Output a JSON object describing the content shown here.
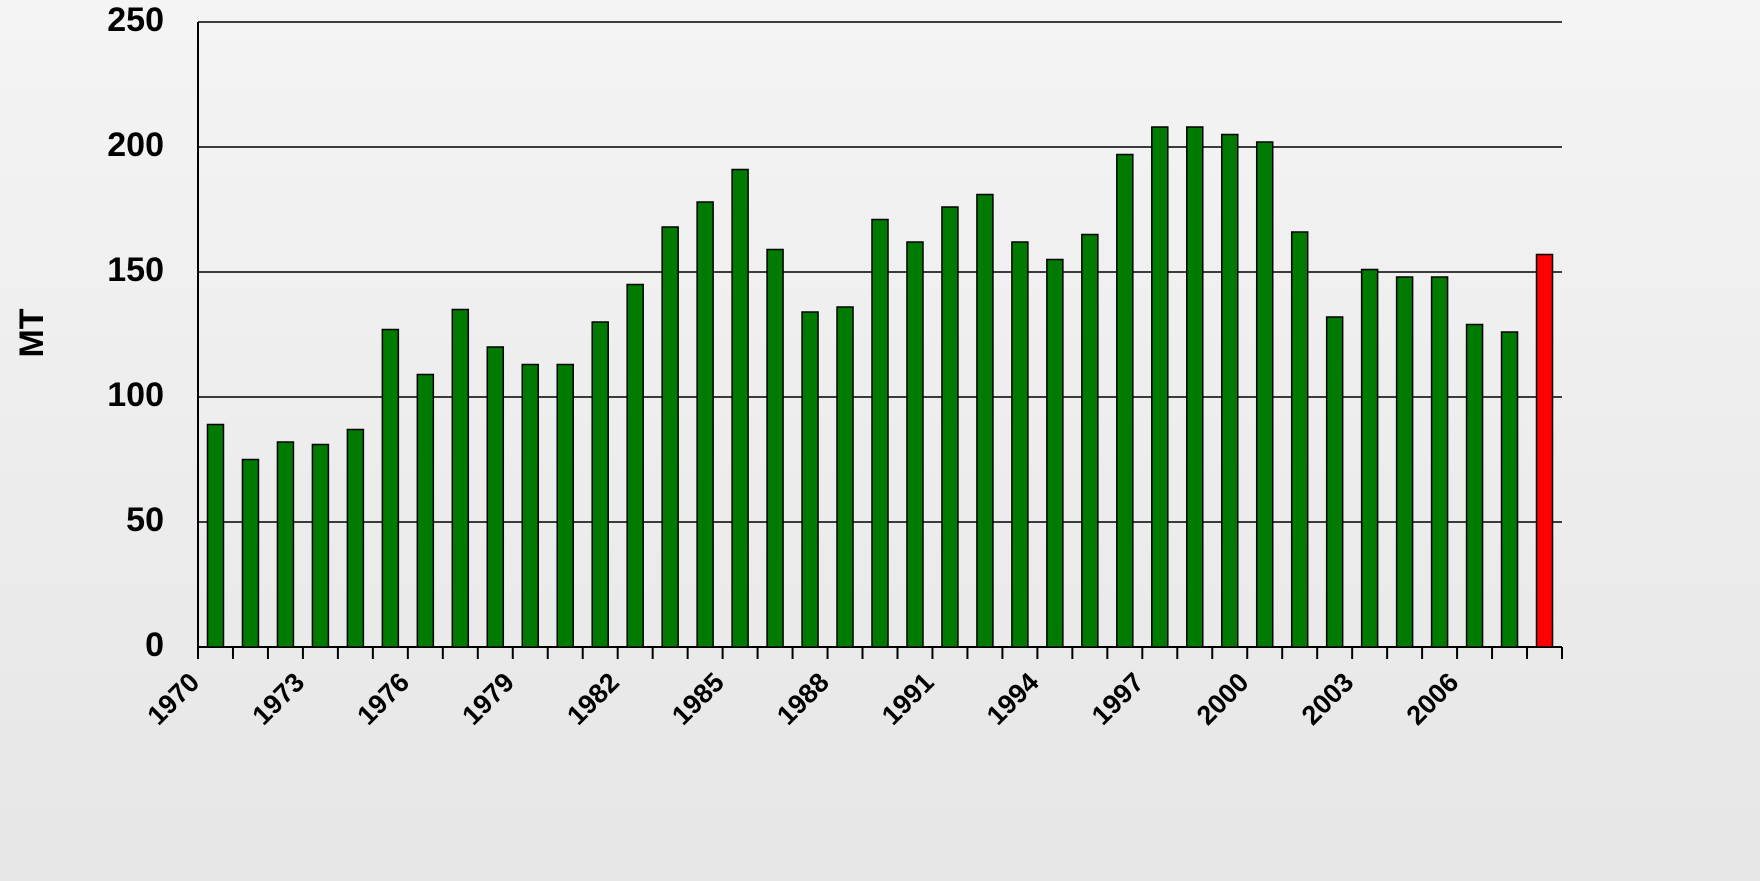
{
  "chart_data": {
    "type": "bar",
    "y_label": "MT",
    "categories": [
      "1970",
      null,
      null,
      "1973",
      null,
      null,
      "1976",
      null,
      null,
      "1979",
      null,
      null,
      "1982",
      null,
      null,
      "1985",
      null,
      null,
      "1988",
      null,
      null,
      "1991",
      null,
      null,
      "1994",
      null,
      null,
      "1997",
      null,
      null,
      "2000",
      null,
      null,
      "2003",
      null,
      null,
      "2006",
      null,
      null
    ],
    "values": [
      89,
      75,
      82,
      81,
      87,
      127,
      109,
      135,
      120,
      113,
      113,
      130,
      145,
      168,
      178,
      191,
      159,
      134,
      136,
      171,
      162,
      176,
      181,
      162,
      155,
      165,
      197,
      208,
      208,
      205,
      202,
      166,
      132,
      151,
      148,
      148,
      129,
      126,
      157
    ],
    "colors": [
      "#007a00",
      "#007a00",
      "#007a00",
      "#007a00",
      "#007a00",
      "#007a00",
      "#007a00",
      "#007a00",
      "#007a00",
      "#007a00",
      "#007a00",
      "#007a00",
      "#007a00",
      "#007a00",
      "#007a00",
      "#007a00",
      "#007a00",
      "#007a00",
      "#007a00",
      "#007a00",
      "#007a00",
      "#007a00",
      "#007a00",
      "#007a00",
      "#007a00",
      "#007a00",
      "#007a00",
      "#007a00",
      "#007a00",
      "#007a00",
      "#007a00",
      "#007a00",
      "#007a00",
      "#007a00",
      "#007a00",
      "#007a00",
      "#007a00",
      "#007a00",
      "#ff0000"
    ],
    "ylim": [
      0,
      250
    ],
    "yticks": [
      0,
      50,
      100,
      150,
      200,
      250
    ],
    "grid": true
  }
}
